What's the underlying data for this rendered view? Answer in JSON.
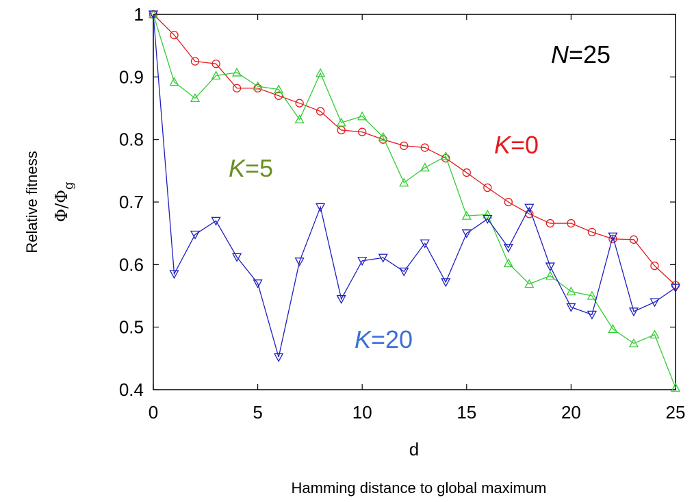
{
  "chart_data": {
    "type": "line",
    "xlabel": "d",
    "ylabel_top": "Relative fitness",
    "ylabel_symbol": "Φ/Φ",
    "ylabel_subscript": "g",
    "caption": "Hamming distance to global maximum",
    "xlim": [
      0,
      25
    ],
    "ylim": [
      0.4,
      1.0
    ],
    "xticks": [
      "0",
      "5",
      "10",
      "15",
      "20",
      "25"
    ],
    "yticks": [
      "0.4",
      "0.5",
      "0.6",
      "0.7",
      "0.8",
      "0.9",
      "1"
    ],
    "annotations": [
      {
        "italic": "N",
        "rest": "=25",
        "color": "#000000"
      },
      {
        "italic": "K",
        "rest": "=0",
        "color": "#e41a1c"
      },
      {
        "italic": "K",
        "rest": "=5",
        "color": "#6b8e23"
      },
      {
        "italic": "K",
        "rest": "=20",
        "color": "#3c6fd6"
      }
    ],
    "x": [
      0,
      1,
      2,
      3,
      4,
      5,
      6,
      7,
      8,
      9,
      10,
      11,
      12,
      13,
      14,
      15,
      16,
      17,
      18,
      19,
      20,
      21,
      22,
      23,
      24,
      25
    ],
    "series": [
      {
        "key": "K0",
        "marker": "circle",
        "color": "#e31a1c",
        "values": [
          1.0,
          0.967,
          0.925,
          0.921,
          0.882,
          0.882,
          0.87,
          0.858,
          0.845,
          0.815,
          0.812,
          0.8,
          0.79,
          0.787,
          0.77,
          0.747,
          0.723,
          0.7,
          0.681,
          0.666,
          0.666,
          0.652,
          0.641,
          0.64,
          0.598,
          0.567
        ]
      },
      {
        "key": "K5",
        "marker": "triangle-up",
        "color": "#33cc33",
        "values": [
          1.0,
          0.892,
          0.866,
          0.902,
          0.907,
          0.885,
          0.88,
          0.832,
          0.906,
          0.827,
          0.837,
          0.804,
          0.731,
          0.755,
          0.773,
          0.678,
          0.68,
          0.602,
          0.569,
          0.582,
          0.557,
          0.55,
          0.497,
          0.474,
          0.488,
          0.403
        ]
      },
      {
        "key": "K20",
        "marker": "triangle-down",
        "color": "#1f1fbf",
        "values": [
          1.0,
          0.585,
          0.648,
          0.67,
          0.612,
          0.57,
          0.452,
          0.605,
          0.692,
          0.545,
          0.606,
          0.611,
          0.589,
          0.634,
          0.572,
          0.65,
          0.673,
          0.627,
          0.691,
          0.597,
          0.532,
          0.52,
          0.645,
          0.525,
          0.54,
          0.563
        ]
      }
    ]
  }
}
